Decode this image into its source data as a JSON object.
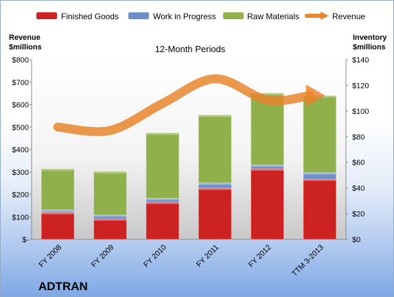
{
  "chart_data": {
    "type": "bar",
    "title": "12-Month Periods",
    "company": "ADTRAN",
    "categories": [
      "FY 2008",
      "FY 2009",
      "FY 2010",
      "FY 2011",
      "FY 2012",
      "TTM 3-2013"
    ],
    "series": [
      {
        "name": "Finished Goods",
        "axis": "right",
        "color": "#cc2222",
        "values": [
          21,
          16,
          29,
          40,
          55,
          47
        ]
      },
      {
        "name": "Work in Progress",
        "axis": "right",
        "color": "#6b8fc9",
        "values": [
          2,
          3,
          3,
          4,
          3,
          5
        ]
      },
      {
        "name": "Raw Materials",
        "axis": "right",
        "color": "#8fb04a",
        "values": [
          32,
          34,
          51,
          53,
          56,
          60
        ]
      },
      {
        "name": "Revenue",
        "type": "line",
        "axis": "left",
        "color": "#e8852d",
        "values": [
          500,
          485,
          605,
          715,
          620,
          640
        ]
      }
    ],
    "left_axis": {
      "label_line1": "Revenue",
      "label_line2": "$millions",
      "ylim": [
        0,
        800
      ],
      "ticks": [
        0,
        100,
        200,
        300,
        400,
        500,
        600,
        700,
        800
      ],
      "tick_labels": [
        "$-",
        "$100",
        "$200",
        "$300",
        "$400",
        "$500",
        "$600",
        "$700",
        "$800"
      ]
    },
    "right_axis": {
      "label_line1": "Inventory",
      "label_line2": "$millions",
      "ylim": [
        0,
        140
      ],
      "ticks": [
        0,
        20,
        40,
        60,
        80,
        100,
        120,
        140
      ],
      "tick_labels": [
        "$0",
        "$20",
        "$40",
        "$60",
        "$80",
        "$100",
        "$120",
        "$140"
      ]
    },
    "legend_position": "top",
    "grid": false
  }
}
